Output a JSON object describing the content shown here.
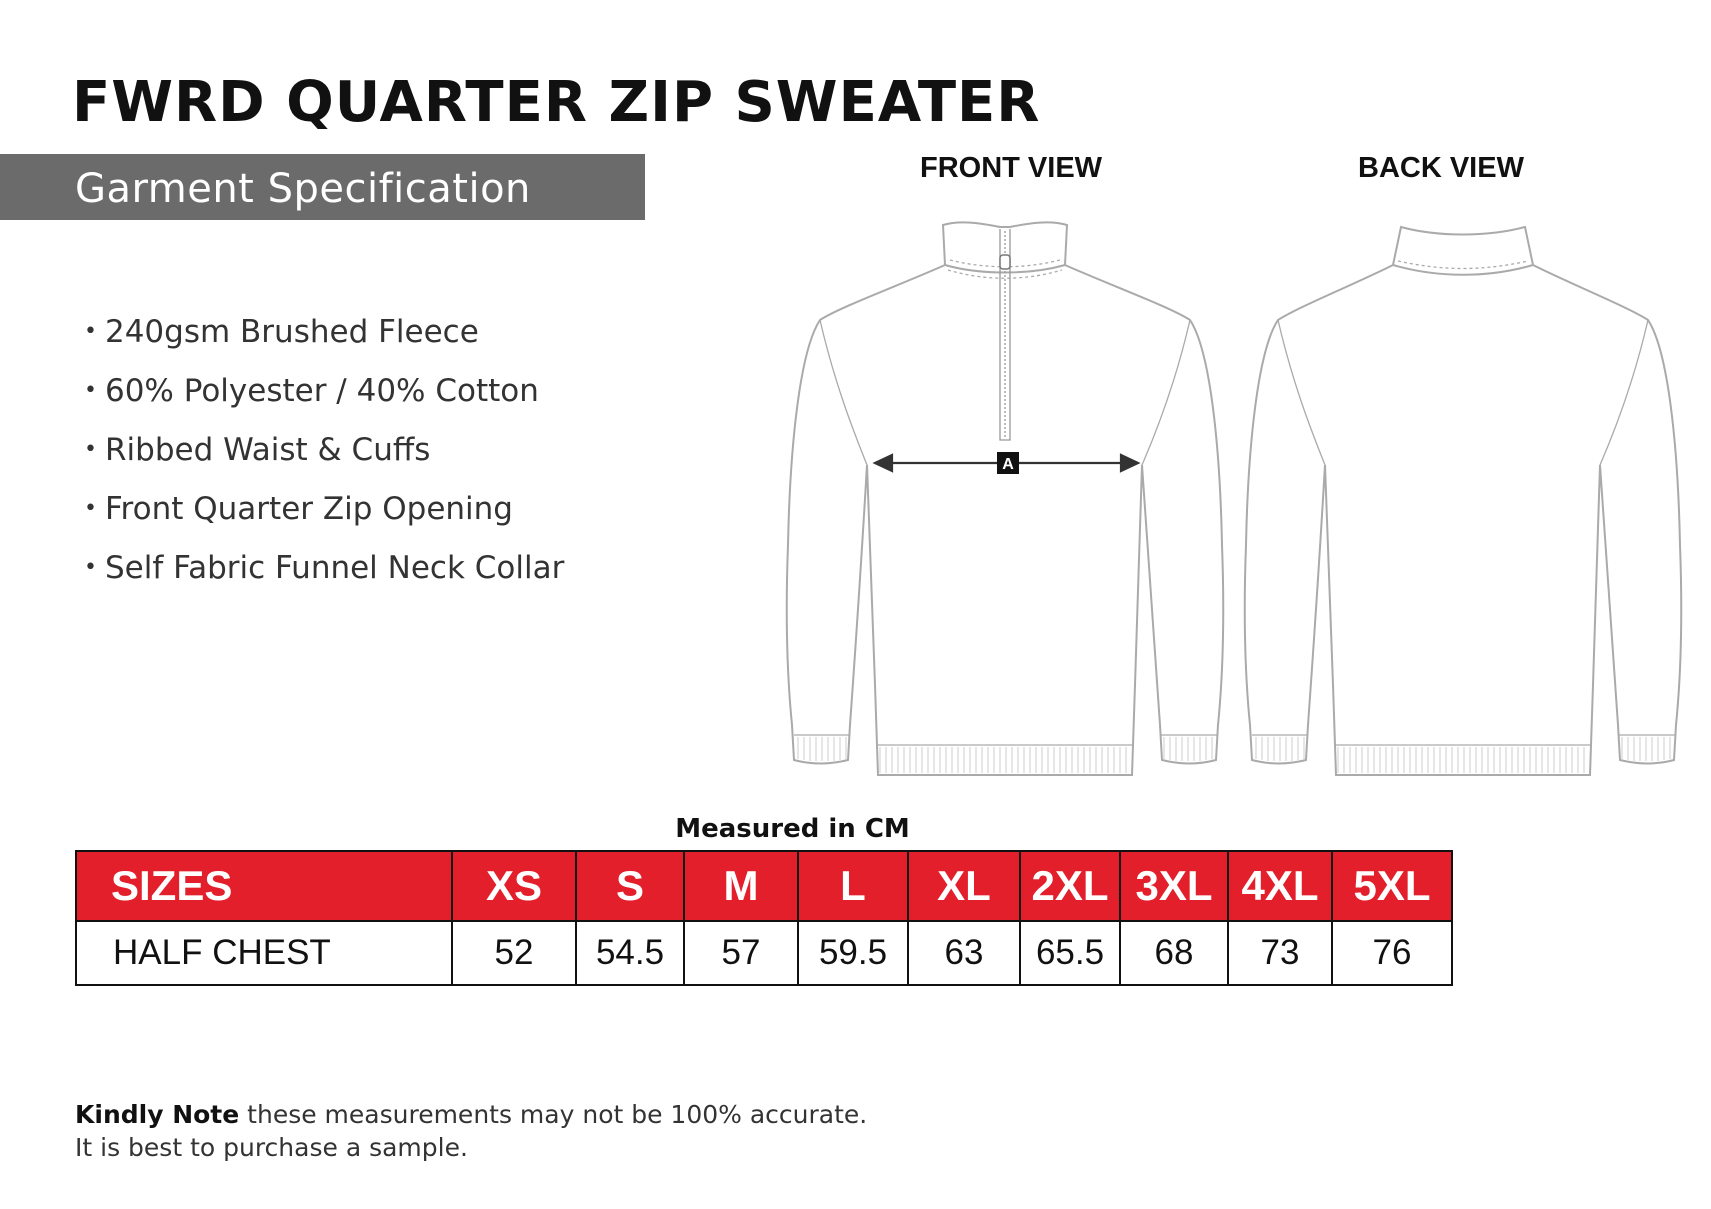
{
  "title": "FWRD QUARTER ZIP SWEATER",
  "spec_band": "Garment Specification",
  "features": [
    "240gsm Brushed Fleece",
    "60% Polyester / 40% Cotton",
    "Ribbed Waist & Cuffs",
    "Front Quarter Zip Opening",
    "Self Fabric Funnel Neck Collar"
  ],
  "bullet": "•",
  "views": {
    "front": "FRONT VIEW",
    "back": "BACK VIEW",
    "marker": "A"
  },
  "measured_label": "Measured in CM",
  "size_table": {
    "header_label": "SIZES",
    "sizes": [
      "XS",
      "S",
      "M",
      "L",
      "XL",
      "2XL",
      "3XL",
      "4XL",
      "5XL"
    ],
    "row_label": "HALF CHEST",
    "values": [
      "52",
      "54.5",
      "57",
      "59.5",
      "63",
      "65.5",
      "68",
      "73",
      "76"
    ]
  },
  "note": {
    "bold": "Kindly Note",
    "line1": " these measurements may not be 100% accurate.",
    "line2": "It is best to purchase a sample."
  },
  "colors": {
    "header_red": "#e21f2a",
    "band_grey": "#6b6b6b",
    "outline": "#aaaaaa"
  }
}
